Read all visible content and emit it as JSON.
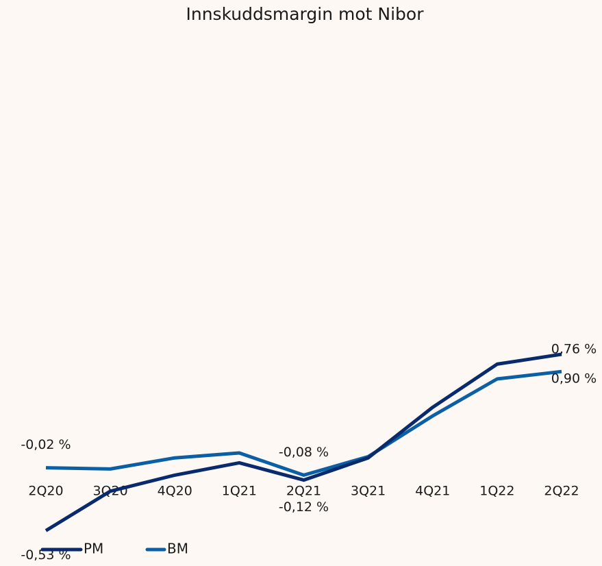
{
  "chart_data": {
    "type": "line",
    "title": "Innskuddsmargin mot Nibor",
    "categories": [
      "2Q20",
      "3Q20",
      "4Q20",
      "1Q21",
      "2Q21",
      "3Q21",
      "4Q21",
      "1Q22",
      "2Q22"
    ],
    "series": [
      {
        "name": "PM",
        "color": "#0a2a6e",
        "values": [
          -0.53,
          -0.21,
          -0.08,
          0.02,
          -0.12,
          0.06,
          0.47,
          0.82,
          0.9
        ],
        "value_labels": [
          "-0,53 %",
          null,
          null,
          null,
          "-0,12 %",
          null,
          null,
          null,
          "0,90 %"
        ]
      },
      {
        "name": "BM",
        "color": "#0b5fa5",
        "values": [
          -0.02,
          -0.03,
          0.06,
          0.1,
          -0.08,
          0.07,
          0.4,
          0.7,
          0.76
        ],
        "value_labels": [
          "-0,02 %",
          null,
          null,
          null,
          "-0,08 %",
          null,
          null,
          null,
          "0,76 %"
        ]
      }
    ],
    "ylim": [
      -0.6,
      3.4
    ]
  }
}
